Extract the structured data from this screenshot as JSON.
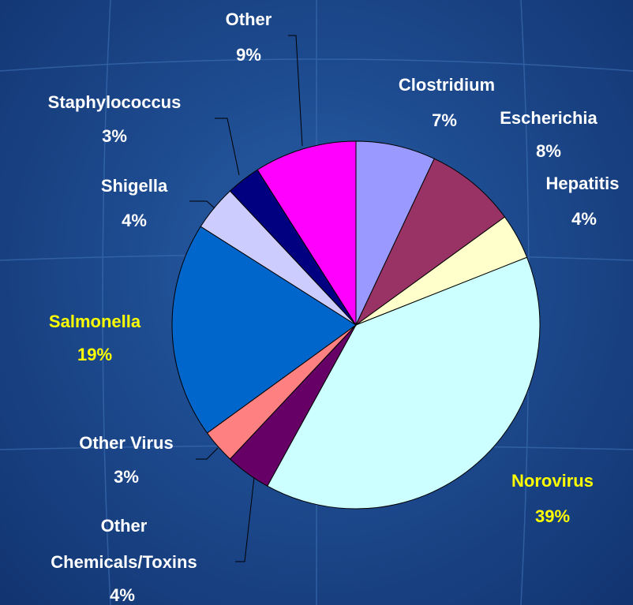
{
  "chart_data": {
    "type": "pie",
    "categories": [
      "Clostridium",
      "Escherichia",
      "Hepatitis",
      "Norovirus",
      "Other Chemicals/Toxins",
      "Other Virus",
      "Salmonella",
      "Shigella",
      "Staphylococcus",
      "Other"
    ],
    "values": [
      7,
      8,
      4,
      39,
      4,
      3,
      19,
      4,
      3,
      9
    ],
    "value_labels": [
      "7%",
      "8%",
      "4%",
      "39%",
      "4%",
      "3%",
      "19%",
      "4%",
      "3%",
      "9%"
    ],
    "colors": [
      "#9999ff",
      "#993366",
      "#ffffcc",
      "#ccffff",
      "#660066",
      "#ff8080",
      "#0066cc",
      "#ccccff",
      "#000080",
      "#ff00ff"
    ]
  }
}
